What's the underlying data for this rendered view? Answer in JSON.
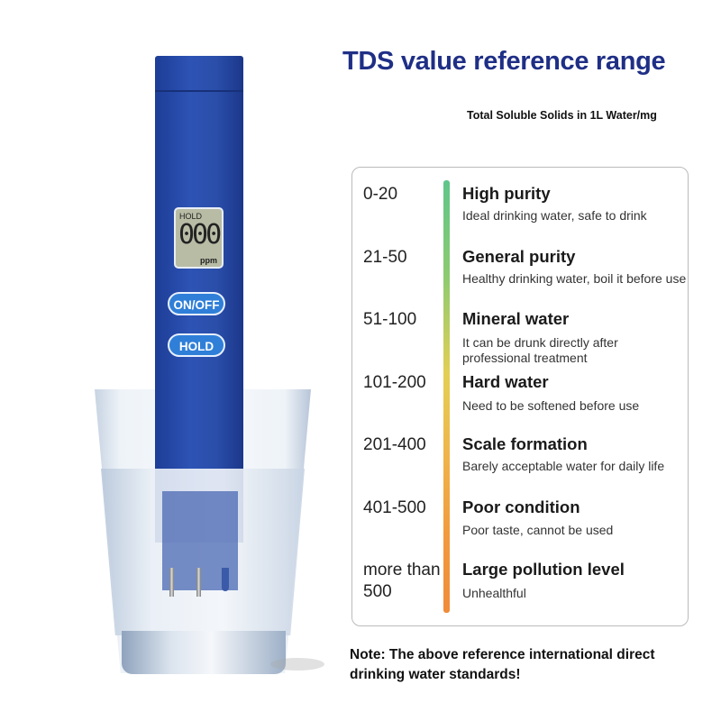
{
  "header": {
    "title": "TDS value reference range",
    "subtitle": "Total Soluble Solids in 1L Water/mg"
  },
  "meter": {
    "display_mode": "HOLD",
    "display_value": "000",
    "display_unit": "ppm",
    "buttons": [
      "ON/OFF",
      "HOLD"
    ],
    "body_color": "#2a4ea9",
    "button_color": "#2f7fd8"
  },
  "reference": [
    {
      "range": "0-20",
      "title": "High purity",
      "desc": "Ideal drinking water, safe to drink"
    },
    {
      "range": "21-50",
      "title": "General purity",
      "desc": "Healthy drinking water, boil it before use"
    },
    {
      "range": "51-100",
      "title": "Mineral water",
      "desc": "It can be drunk directly after professional treatment"
    },
    {
      "range": "101-200",
      "title": "Hard water",
      "desc": "Need to be softened before use"
    },
    {
      "range": "201-400",
      "title": "Scale formation",
      "desc": "Barely acceptable water for daily life"
    },
    {
      "range": "401-500",
      "title": "Poor condition",
      "desc": "Poor taste, cannot be used"
    },
    {
      "range": "more than 500",
      "title": "Large pollution level",
      "desc": "Unhealthful"
    }
  ],
  "scale_colors": [
    "#5fc58a",
    "#e4cf55",
    "#f08b3a"
  ],
  "note": "Note: The above reference international direct drinking water standards!"
}
